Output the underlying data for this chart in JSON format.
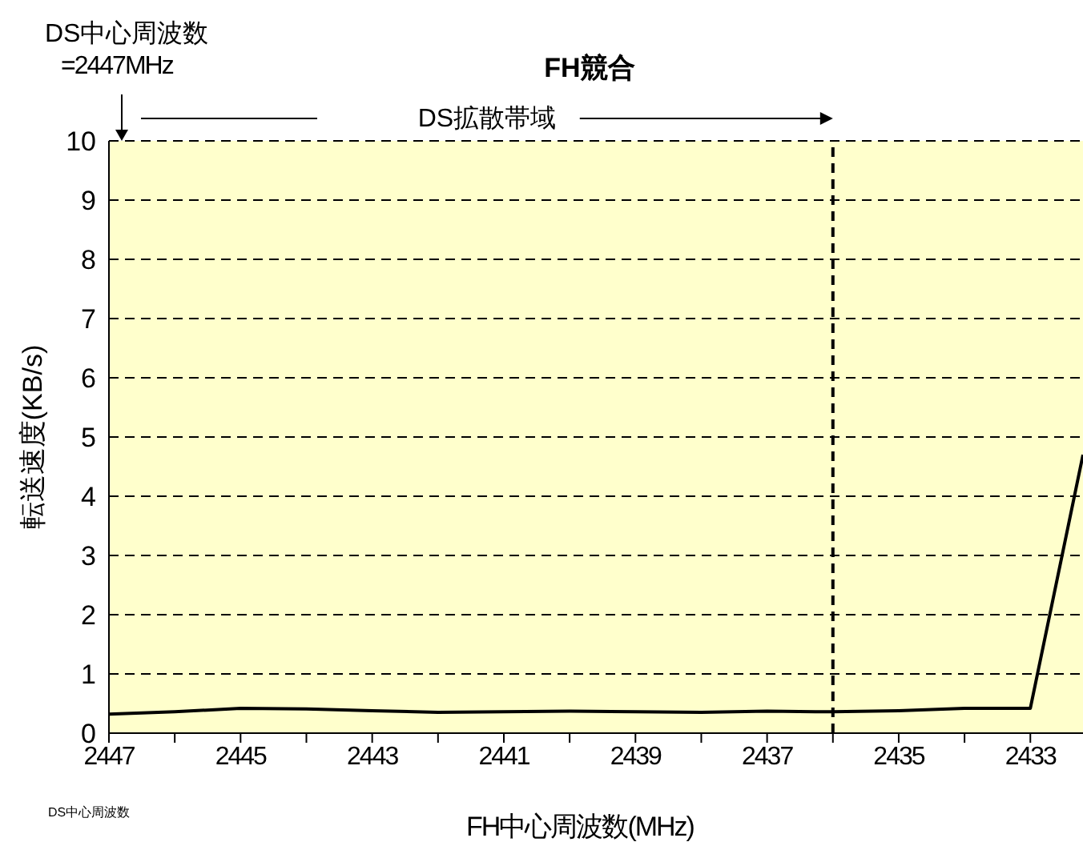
{
  "chart_data": {
    "type": "line",
    "title": "FH競合",
    "xlabel": "FH中心周波数(MHz)",
    "ylabel": "転送速度(KB/s)",
    "x": [
      2447,
      2446,
      2445,
      2444,
      2443,
      2442,
      2441,
      2440,
      2439,
      2438,
      2437,
      2436,
      2435,
      2434,
      2433,
      2432.2
    ],
    "series": [
      {
        "color": "#000000",
        "values": [
          0.32,
          0.36,
          0.42,
          0.41,
          0.38,
          0.35,
          0.36,
          0.37,
          0.36,
          0.35,
          0.37,
          0.36,
          0.38,
          0.42,
          0.42,
          4.7
        ]
      }
    ],
    "xlim": [
      2447,
      2432.2
    ],
    "xticks": [
      2447,
      {
        "value": 2446,
        "label": null
      },
      2445,
      {
        "value": 2444,
        "label": null
      },
      2443,
      {
        "value": 2442,
        "label": null
      },
      2441,
      {
        "value": 2440,
        "label": null
      },
      2439,
      {
        "value": 2438,
        "label": null
      },
      2437,
      {
        "value": 2436,
        "label": null
      },
      2435,
      {
        "value": 2434,
        "label": null
      },
      2433
    ],
    "ylim": [
      0,
      10
    ],
    "yticks": [
      0,
      1,
      2,
      3,
      4,
      5,
      6,
      7,
      8,
      9,
      10
    ],
    "grid": "y",
    "marker": "none",
    "line_style": "solid",
    "ref_lines": [
      {
        "axis": "x",
        "value": 2436,
        "color": "#000000",
        "line_style": "dashed"
      }
    ],
    "annotations": [
      "DS中心周波数\n=2447MHz",
      "DS拡散帯域",
      "DS中心周波数"
    ]
  }
}
